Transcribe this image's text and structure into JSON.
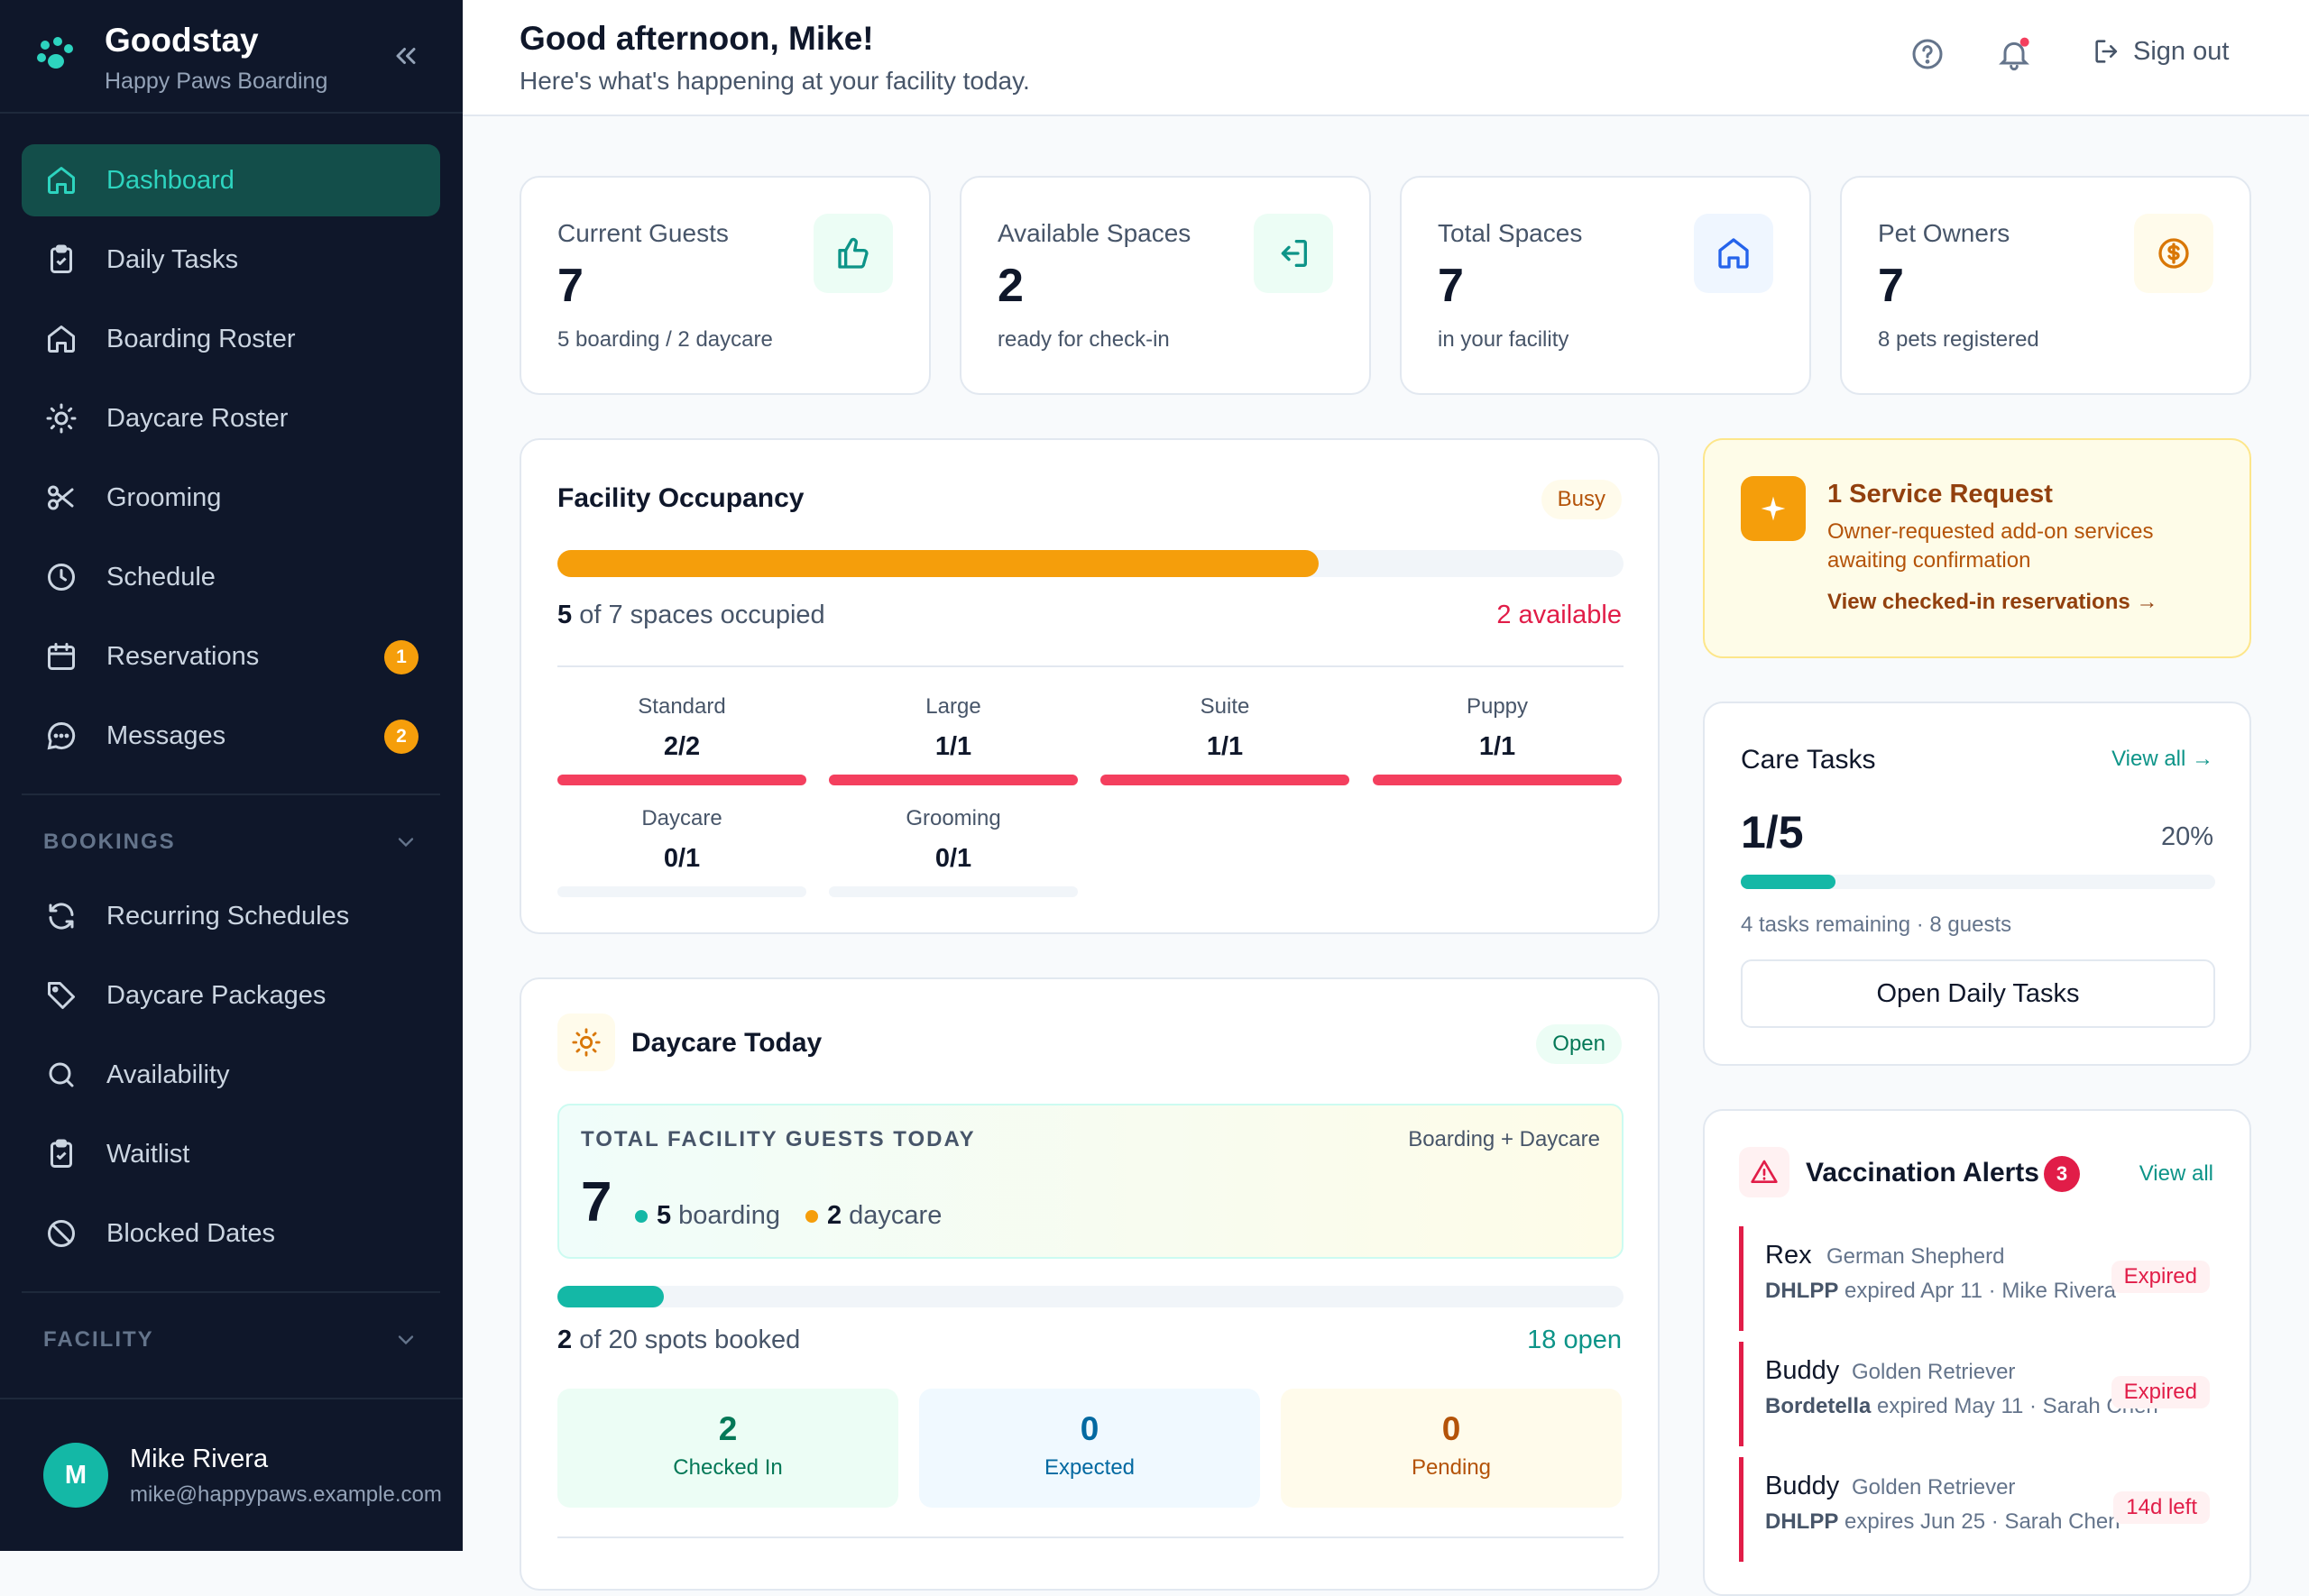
{
  "brand": {
    "name": "Goodstay",
    "subtitle": "Happy Paws Boarding"
  },
  "nav": {
    "items": [
      {
        "label": "Dashboard",
        "icon": "home-icon",
        "active": true
      },
      {
        "label": "Daily Tasks",
        "icon": "clipboard-icon"
      },
      {
        "label": "Boarding Roster",
        "icon": "home-icon"
      },
      {
        "label": "Daycare Roster",
        "icon": "sun-icon"
      },
      {
        "label": "Grooming",
        "icon": "scissors-icon"
      },
      {
        "label": "Schedule",
        "icon": "clock-icon"
      },
      {
        "label": "Reservations",
        "icon": "calendar-icon",
        "badge": "1"
      },
      {
        "label": "Messages",
        "icon": "chat-icon",
        "badge": "2"
      }
    ],
    "bookings_section": "BOOKINGS",
    "bookings_items": [
      {
        "label": "Recurring Schedules",
        "icon": "repeat-icon"
      },
      {
        "label": "Daycare Packages",
        "icon": "tag-icon"
      },
      {
        "label": "Availability",
        "icon": "search-icon"
      },
      {
        "label": "Waitlist",
        "icon": "clipboard-icon"
      },
      {
        "label": "Blocked Dates",
        "icon": "block-icon"
      }
    ],
    "facility_section": "FACILITY"
  },
  "user": {
    "initial": "M",
    "name": "Mike Rivera",
    "email": "mike@happypaws.example.com"
  },
  "header": {
    "greeting": "Good afternoon, Mike!",
    "subtitle": "Here's what's happening at your facility today.",
    "sign_out": "Sign out"
  },
  "stats": [
    {
      "label": "Current Guests",
      "value": "7",
      "note": "5 boarding / 2 daycare",
      "icon": "thumbs-up-icon"
    },
    {
      "label": "Available Spaces",
      "value": "2",
      "note": "ready for check-in",
      "icon": "sign-in-icon"
    },
    {
      "label": "Total Spaces",
      "value": "7",
      "note": "in your facility",
      "icon": "home-icon"
    },
    {
      "label": "Pet Owners",
      "value": "7",
      "note": "8 pets registered",
      "icon": "dollar-icon"
    }
  ],
  "occupancy": {
    "title": "Facility Occupancy",
    "status": "Busy",
    "fill_fraction": 0.714,
    "occupied_num": "5",
    "occupied_text": "of 7 spaces occupied",
    "available": "2 available",
    "rooms": [
      {
        "name": "Standard",
        "value": "2/2",
        "fraction": 1
      },
      {
        "name": "Large",
        "value": "1/1",
        "fraction": 1
      },
      {
        "name": "Suite",
        "value": "1/1",
        "fraction": 1
      },
      {
        "name": "Puppy",
        "value": "1/1",
        "fraction": 1
      },
      {
        "name": "Daycare",
        "value": "0/1",
        "fraction": 0
      },
      {
        "name": "Grooming",
        "value": "0/1",
        "fraction": 0
      }
    ]
  },
  "daycare": {
    "title": "Daycare Today",
    "status": "Open",
    "total_label": "TOTAL FACILITY GUESTS TODAY",
    "total_scope": "Boarding + Daycare",
    "total_value": "7",
    "boarding_num": "5",
    "boarding_label": "boarding",
    "daycare_num": "2",
    "daycare_label": "daycare",
    "spots_fraction": 0.1,
    "spots_num": "2",
    "spots_text": "of 20 spots booked",
    "open_text": "18 open",
    "checked_in": {
      "value": "2",
      "label": "Checked In"
    },
    "expected": {
      "value": "0",
      "label": "Expected"
    },
    "pending": {
      "value": "0",
      "label": "Pending"
    }
  },
  "service_request": {
    "title": "1 Service Request",
    "desc": "Owner-requested add-on services awaiting confirmation",
    "link": "View checked-in reservations →"
  },
  "care_tasks": {
    "title": "Care Tasks",
    "view_all": "View all →",
    "progress": "1/5",
    "percent": "20%",
    "fraction": 0.2,
    "note": "4 tasks remaining · 8 guests",
    "button": "Open Daily Tasks"
  },
  "vaccination": {
    "title": "Vaccination Alerts",
    "count": "3",
    "view_all": "View all",
    "alerts": [
      {
        "name": "Rex",
        "breed": "German Shepherd",
        "vaccine": "DHLPP",
        "detail": "expired Apr 11 · Mike Rivera",
        "status": "Expired"
      },
      {
        "name": "Buddy",
        "breed": "Golden Retriever",
        "vaccine": "Bordetella",
        "detail": "expired May 11 · Sarah Chen",
        "status": "Expired"
      },
      {
        "name": "Buddy",
        "breed": "Golden Retriever",
        "vaccine": "DHLPP",
        "detail": "expires Jun 25 · Sarah Chen",
        "status": "14d left"
      }
    ]
  },
  "colors": {
    "accent": "#14b8a6",
    "sidebar": "#0f172a",
    "warning": "#f59e0b",
    "danger": "#f43f5e"
  }
}
